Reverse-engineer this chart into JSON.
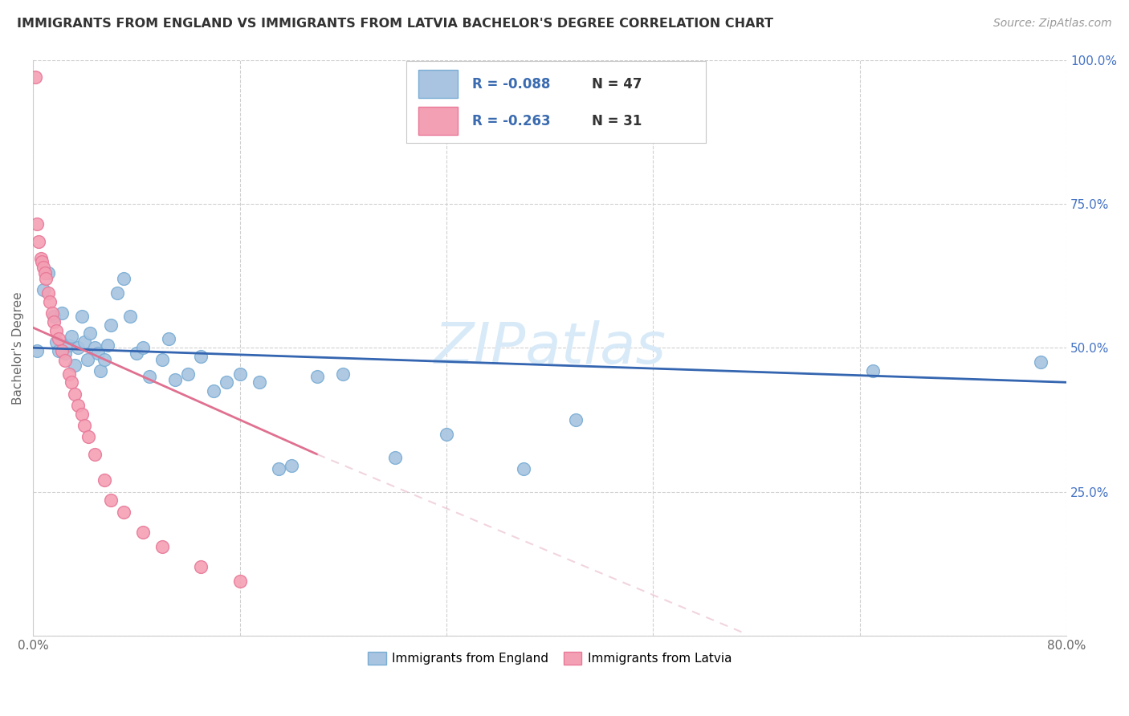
{
  "title": "IMMIGRANTS FROM ENGLAND VS IMMIGRANTS FROM LATVIA BACHELOR'S DEGREE CORRELATION CHART",
  "source": "Source: ZipAtlas.com",
  "ylabel": "Bachelor's Degree",
  "x_label_england": "Immigrants from England",
  "x_label_latvia": "Immigrants from Latvia",
  "x_min": 0.0,
  "x_max": 0.8,
  "y_min": 0.0,
  "y_max": 1.0,
  "x_ticks": [
    0.0,
    0.16,
    0.32,
    0.48,
    0.64,
    0.8
  ],
  "y_ticks_right": [
    0.0,
    0.25,
    0.5,
    0.75,
    1.0
  ],
  "y_tick_labels_right": [
    "",
    "25.0%",
    "50.0%",
    "75.0%",
    "100.0%"
  ],
  "england_R": -0.088,
  "england_N": 47,
  "latvia_R": -0.263,
  "latvia_N": 31,
  "england_color": "#a8c4e0",
  "england_edge_color": "#7aadd4",
  "latvia_color": "#f4a0b4",
  "latvia_edge_color": "#e87898",
  "england_line_color": "#3465b0",
  "latvia_line_color": "#e07090",
  "watermark_color": "#d8eaf8",
  "england_points_x": [
    0.003,
    0.008,
    0.012,
    0.016,
    0.018,
    0.02,
    0.022,
    0.025,
    0.028,
    0.03,
    0.032,
    0.035,
    0.038,
    0.04,
    0.042,
    0.044,
    0.048,
    0.05,
    0.052,
    0.055,
    0.058,
    0.06,
    0.065,
    0.07,
    0.075,
    0.08,
    0.085,
    0.09,
    0.1,
    0.105,
    0.11,
    0.12,
    0.13,
    0.14,
    0.15,
    0.16,
    0.175,
    0.19,
    0.2,
    0.22,
    0.24,
    0.28,
    0.32,
    0.38,
    0.42,
    0.65,
    0.78
  ],
  "england_points_y": [
    0.495,
    0.6,
    0.63,
    0.555,
    0.51,
    0.495,
    0.56,
    0.49,
    0.505,
    0.52,
    0.47,
    0.5,
    0.555,
    0.51,
    0.48,
    0.525,
    0.5,
    0.49,
    0.46,
    0.48,
    0.505,
    0.54,
    0.595,
    0.62,
    0.555,
    0.49,
    0.5,
    0.45,
    0.48,
    0.515,
    0.445,
    0.455,
    0.485,
    0.425,
    0.44,
    0.455,
    0.44,
    0.29,
    0.295,
    0.45,
    0.455,
    0.31,
    0.35,
    0.29,
    0.375,
    0.46,
    0.475
  ],
  "latvia_points_x": [
    0.002,
    0.003,
    0.004,
    0.006,
    0.007,
    0.008,
    0.009,
    0.01,
    0.012,
    0.013,
    0.015,
    0.016,
    0.018,
    0.02,
    0.022,
    0.025,
    0.028,
    0.03,
    0.032,
    0.035,
    0.038,
    0.04,
    0.043,
    0.048,
    0.055,
    0.06,
    0.07,
    0.085,
    0.1,
    0.13,
    0.16
  ],
  "latvia_points_y": [
    0.97,
    0.715,
    0.685,
    0.655,
    0.65,
    0.64,
    0.63,
    0.62,
    0.595,
    0.58,
    0.56,
    0.545,
    0.53,
    0.515,
    0.495,
    0.478,
    0.455,
    0.44,
    0.42,
    0.4,
    0.385,
    0.365,
    0.345,
    0.315,
    0.27,
    0.235,
    0.215,
    0.18,
    0.155,
    0.12,
    0.095
  ]
}
